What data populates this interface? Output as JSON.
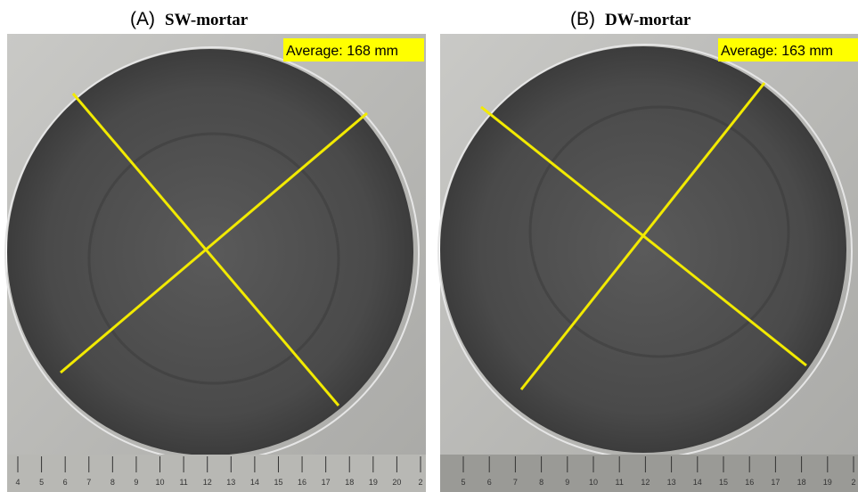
{
  "panels": [
    {
      "letter": "(A)",
      "title": "SW-mortar",
      "annotation": "Average: 168 mm",
      "ruler_labels": [
        "4",
        "5",
        "6",
        "7",
        "8",
        "9",
        "10",
        "11",
        "12",
        "13",
        "14",
        "15",
        "16",
        "17",
        "18",
        "19",
        "20",
        "2"
      ]
    },
    {
      "letter": "(B)",
      "title": "DW-mortar",
      "annotation": "Average: 163 mm",
      "ruler_labels": [
        "5",
        "6",
        "7",
        "8",
        "9",
        "10",
        "11",
        "12",
        "13",
        "14",
        "15",
        "16",
        "17",
        "18",
        "19",
        "2"
      ]
    }
  ]
}
